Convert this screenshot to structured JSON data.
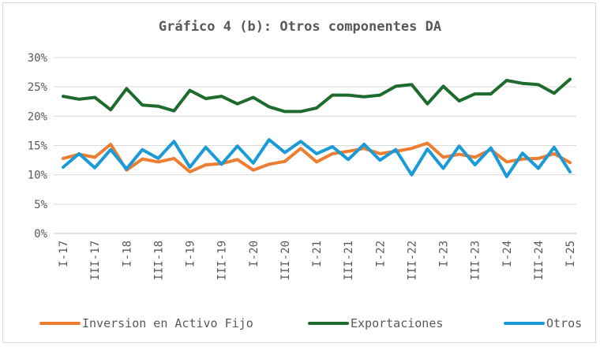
{
  "chart_data": {
    "type": "line",
    "title": "Gráfico 4 (b): Otros componentes DA",
    "xlabel": "",
    "ylabel": "",
    "ylim": [
      0,
      30
    ],
    "y_ticks": [
      "0%",
      "5%",
      "10%",
      "15%",
      "20%",
      "25%",
      "30%"
    ],
    "grid": "horizontal",
    "legend_position": "bottom",
    "categories": [
      "I-17",
      "II-17",
      "III-17",
      "IV-17",
      "I-18",
      "II-18",
      "III-18",
      "IV-18",
      "I-19",
      "II-19",
      "III-19",
      "IV-19",
      "I-20",
      "II-20",
      "III-20",
      "IV-20",
      "I-21",
      "II-21",
      "III-21",
      "IV-21",
      "I-22",
      "II-22",
      "III-22",
      "IV-22",
      "I-23",
      "II-23",
      "III-23",
      "IV-23",
      "I-24",
      "II-24",
      "III-24",
      "IV-24",
      "I-25"
    ],
    "x_tick_labels": [
      "I-17",
      "",
      "III-17",
      "",
      "I-18",
      "",
      "III-18",
      "",
      "I-19",
      "",
      "III-19",
      "",
      "I-20",
      "",
      "III-20",
      "",
      "I-21",
      "",
      "III-21",
      "",
      "I-22",
      "",
      "III-22",
      "",
      "I-23",
      "",
      "III-23",
      "",
      "I-24",
      "",
      "III-24",
      "",
      "I-25"
    ],
    "series": [
      {
        "name": "Inversion en Activo Fijo",
        "color": "#ed7d31",
        "values": [
          12.8,
          13.5,
          13.0,
          15.2,
          10.8,
          12.7,
          12.2,
          12.8,
          10.5,
          11.7,
          11.9,
          12.6,
          10.8,
          11.8,
          12.3,
          14.5,
          12.2,
          13.6,
          14.0,
          14.5,
          13.6,
          14.0,
          14.5,
          15.4,
          13.0,
          13.5,
          13.0,
          14.3,
          12.2,
          12.7,
          12.8,
          13.6,
          12.1
        ]
      },
      {
        "name": "Exportaciones",
        "color": "#1f6b2e",
        "values": [
          23.4,
          22.9,
          23.2,
          21.1,
          24.7,
          21.9,
          21.7,
          20.9,
          24.4,
          23.0,
          23.4,
          22.1,
          23.2,
          21.6,
          20.8,
          20.8,
          21.4,
          23.6,
          23.6,
          23.3,
          23.6,
          25.1,
          25.4,
          22.1,
          25.1,
          22.6,
          23.8,
          23.8,
          26.1,
          25.6,
          25.4,
          23.9,
          26.3
        ]
      },
      {
        "name": "Otros",
        "color": "#1a9bd7",
        "values": [
          11.3,
          13.6,
          11.2,
          14.3,
          11.0,
          14.3,
          12.8,
          15.7,
          11.3,
          14.7,
          11.8,
          14.9,
          12.0,
          16.0,
          13.8,
          15.7,
          13.6,
          14.8,
          12.6,
          15.2,
          12.5,
          14.3,
          10.0,
          14.4,
          11.1,
          14.9,
          11.7,
          14.6,
          9.7,
          13.7,
          11.1,
          14.7,
          10.5
        ]
      }
    ]
  }
}
